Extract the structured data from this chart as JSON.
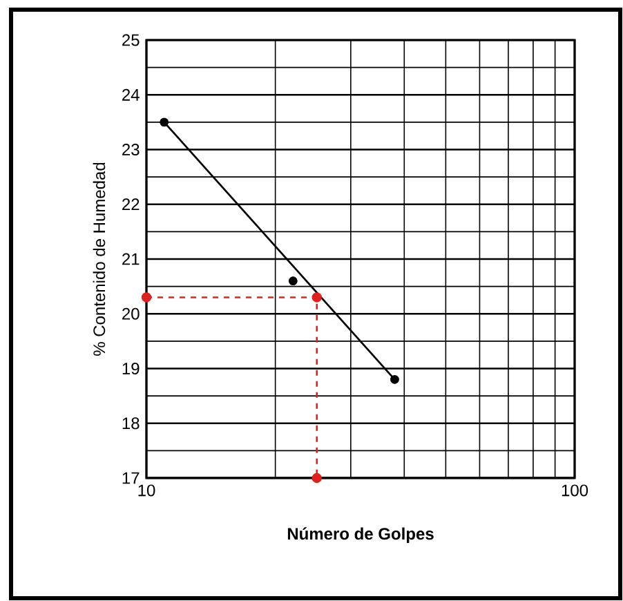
{
  "chart_data": {
    "type": "scatter",
    "xlabel": "**Número de Golpes**",
    "ylabel": "% Contenido de Humedad",
    "log": "x",
    "xlim": [
      10,
      100
    ],
    "xticks": [
      10,
      100
    ],
    "ylim": [
      17,
      25
    ],
    "yticks": [
      17,
      18,
      19,
      20,
      21,
      22,
      23,
      24,
      25
    ],
    "grid": true,
    "series": [
      {
        "x": [
          11,
          22,
          38
        ],
        "values": [
          23.5,
          20.6,
          18.8
        ],
        "color": "#000000",
        "marker": "circle"
      },
      {
        "type": "line",
        "x": [
          11,
          38
        ],
        "values": [
          23.5,
          18.8
        ],
        "color": "#000000",
        "marker": "none",
        "line_style": "solid"
      },
      {
        "type": "line",
        "x": [
          10,
          25,
          25
        ],
        "values": [
          20.3,
          20.3,
          17
        ],
        "color": "#e0201c",
        "marker": "circle",
        "line_style": "dashed"
      }
    ]
  }
}
